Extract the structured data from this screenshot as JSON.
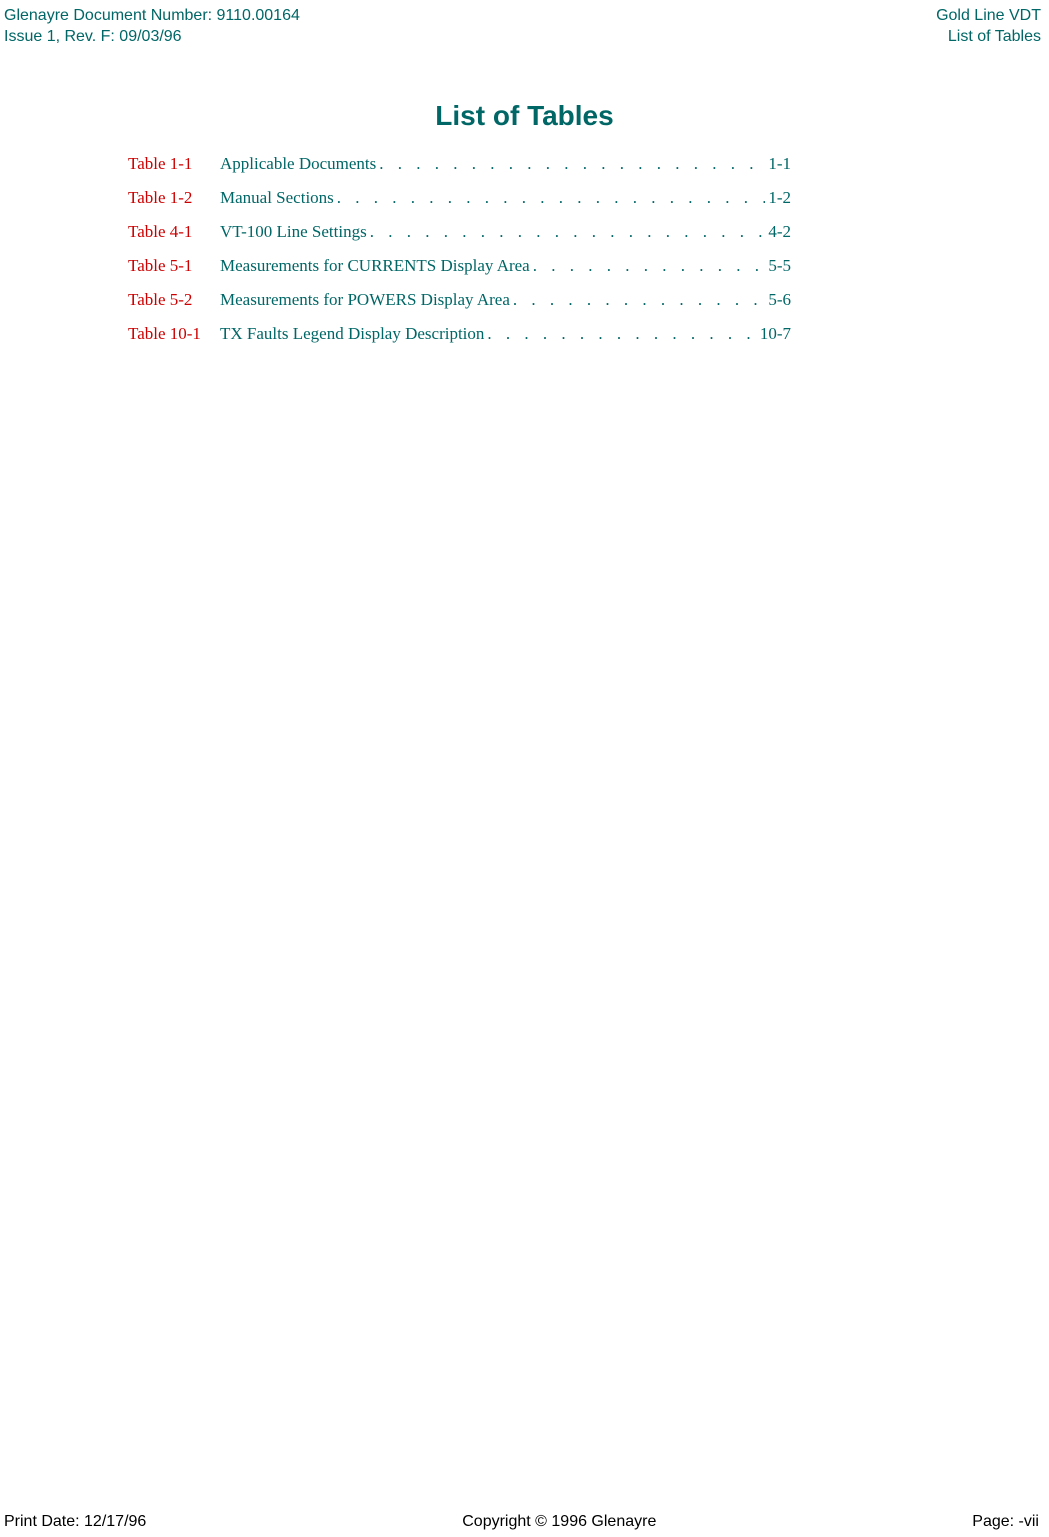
{
  "header": {
    "doc_number": "Glenayre Document Number: 9110.00164",
    "issue": "Issue 1, Rev. F: 09/03/96",
    "product": "Gold Line VDT",
    "section": "List of Tables"
  },
  "title": "List of Tables",
  "entries": [
    {
      "label": "Table 1-1",
      "title": "Applicable Documents ",
      "page": " 1-1"
    },
    {
      "label": "Table 1-2",
      "title": "Manual Sections  ",
      "page": " 1-2"
    },
    {
      "label": "Table 4-1",
      "title": "VT-100 Line Settings ",
      "page": " 4-2"
    },
    {
      "label": "Table 5-1",
      "title": " Measurements for CURRENTS Display Area ",
      "page": " 5-5"
    },
    {
      "label": "Table 5-2",
      "title": "Measurements for POWERS Display Area",
      "page": " 5-6"
    },
    {
      "label": "Table 10-1",
      "title": "TX Faults Legend Display Description",
      "page": "10-7"
    }
  ],
  "footer": {
    "print_date": "Print Date: 12/17/96",
    "copyright": "Copyright © 1996 Glenayre",
    "page": "Page: -vii"
  },
  "colors": {
    "teal": "#006666",
    "red": "#cc0000",
    "black": "#000000",
    "background": "#ffffff"
  }
}
